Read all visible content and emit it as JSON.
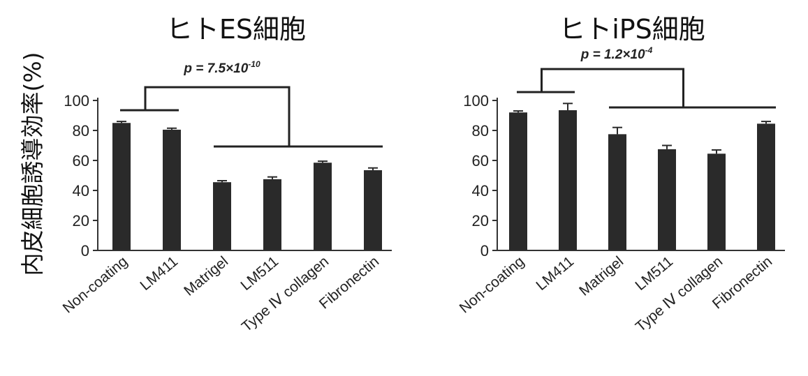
{
  "ylabel": "内皮細胞誘導効率(%)",
  "chart_data": [
    {
      "type": "bar",
      "title": "ヒトES細胞",
      "categories": [
        "Non-coating",
        "LM411",
        "Matrigel",
        "LM511",
        "Type Ⅳ collagen",
        "Fibronectin"
      ],
      "values": [
        85,
        80.5,
        45.5,
        47.5,
        58.5,
        53.5
      ],
      "errors": [
        1,
        1,
        1,
        1.5,
        1,
        1.5
      ],
      "yticks": [
        0,
        20,
        40,
        60,
        80,
        100
      ],
      "ylim": [
        0,
        100
      ],
      "significance": {
        "group_a": [
          0,
          1
        ],
        "group_b": [
          2,
          5
        ],
        "p_prefix": "p = 7.5×10",
        "p_exponent": "-10"
      }
    },
    {
      "type": "bar",
      "title": "ヒトiPS細胞",
      "categories": [
        "Non-coating",
        "LM411",
        "Matrigel",
        "LM511",
        "Type Ⅳ collagen",
        "Fibronectin"
      ],
      "values": [
        92,
        93.5,
        77.5,
        67.5,
        64.5,
        84.5
      ],
      "errors": [
        1,
        4.5,
        4.5,
        2.5,
        2.5,
        1.5
      ],
      "yticks": [
        0,
        20,
        40,
        60,
        80,
        100
      ],
      "ylim": [
        0,
        100
      ],
      "significance": {
        "group_a": [
          0,
          1
        ],
        "group_b": [
          2,
          5
        ],
        "p_prefix": "p = 1.2×10",
        "p_exponent": "-4"
      }
    }
  ]
}
